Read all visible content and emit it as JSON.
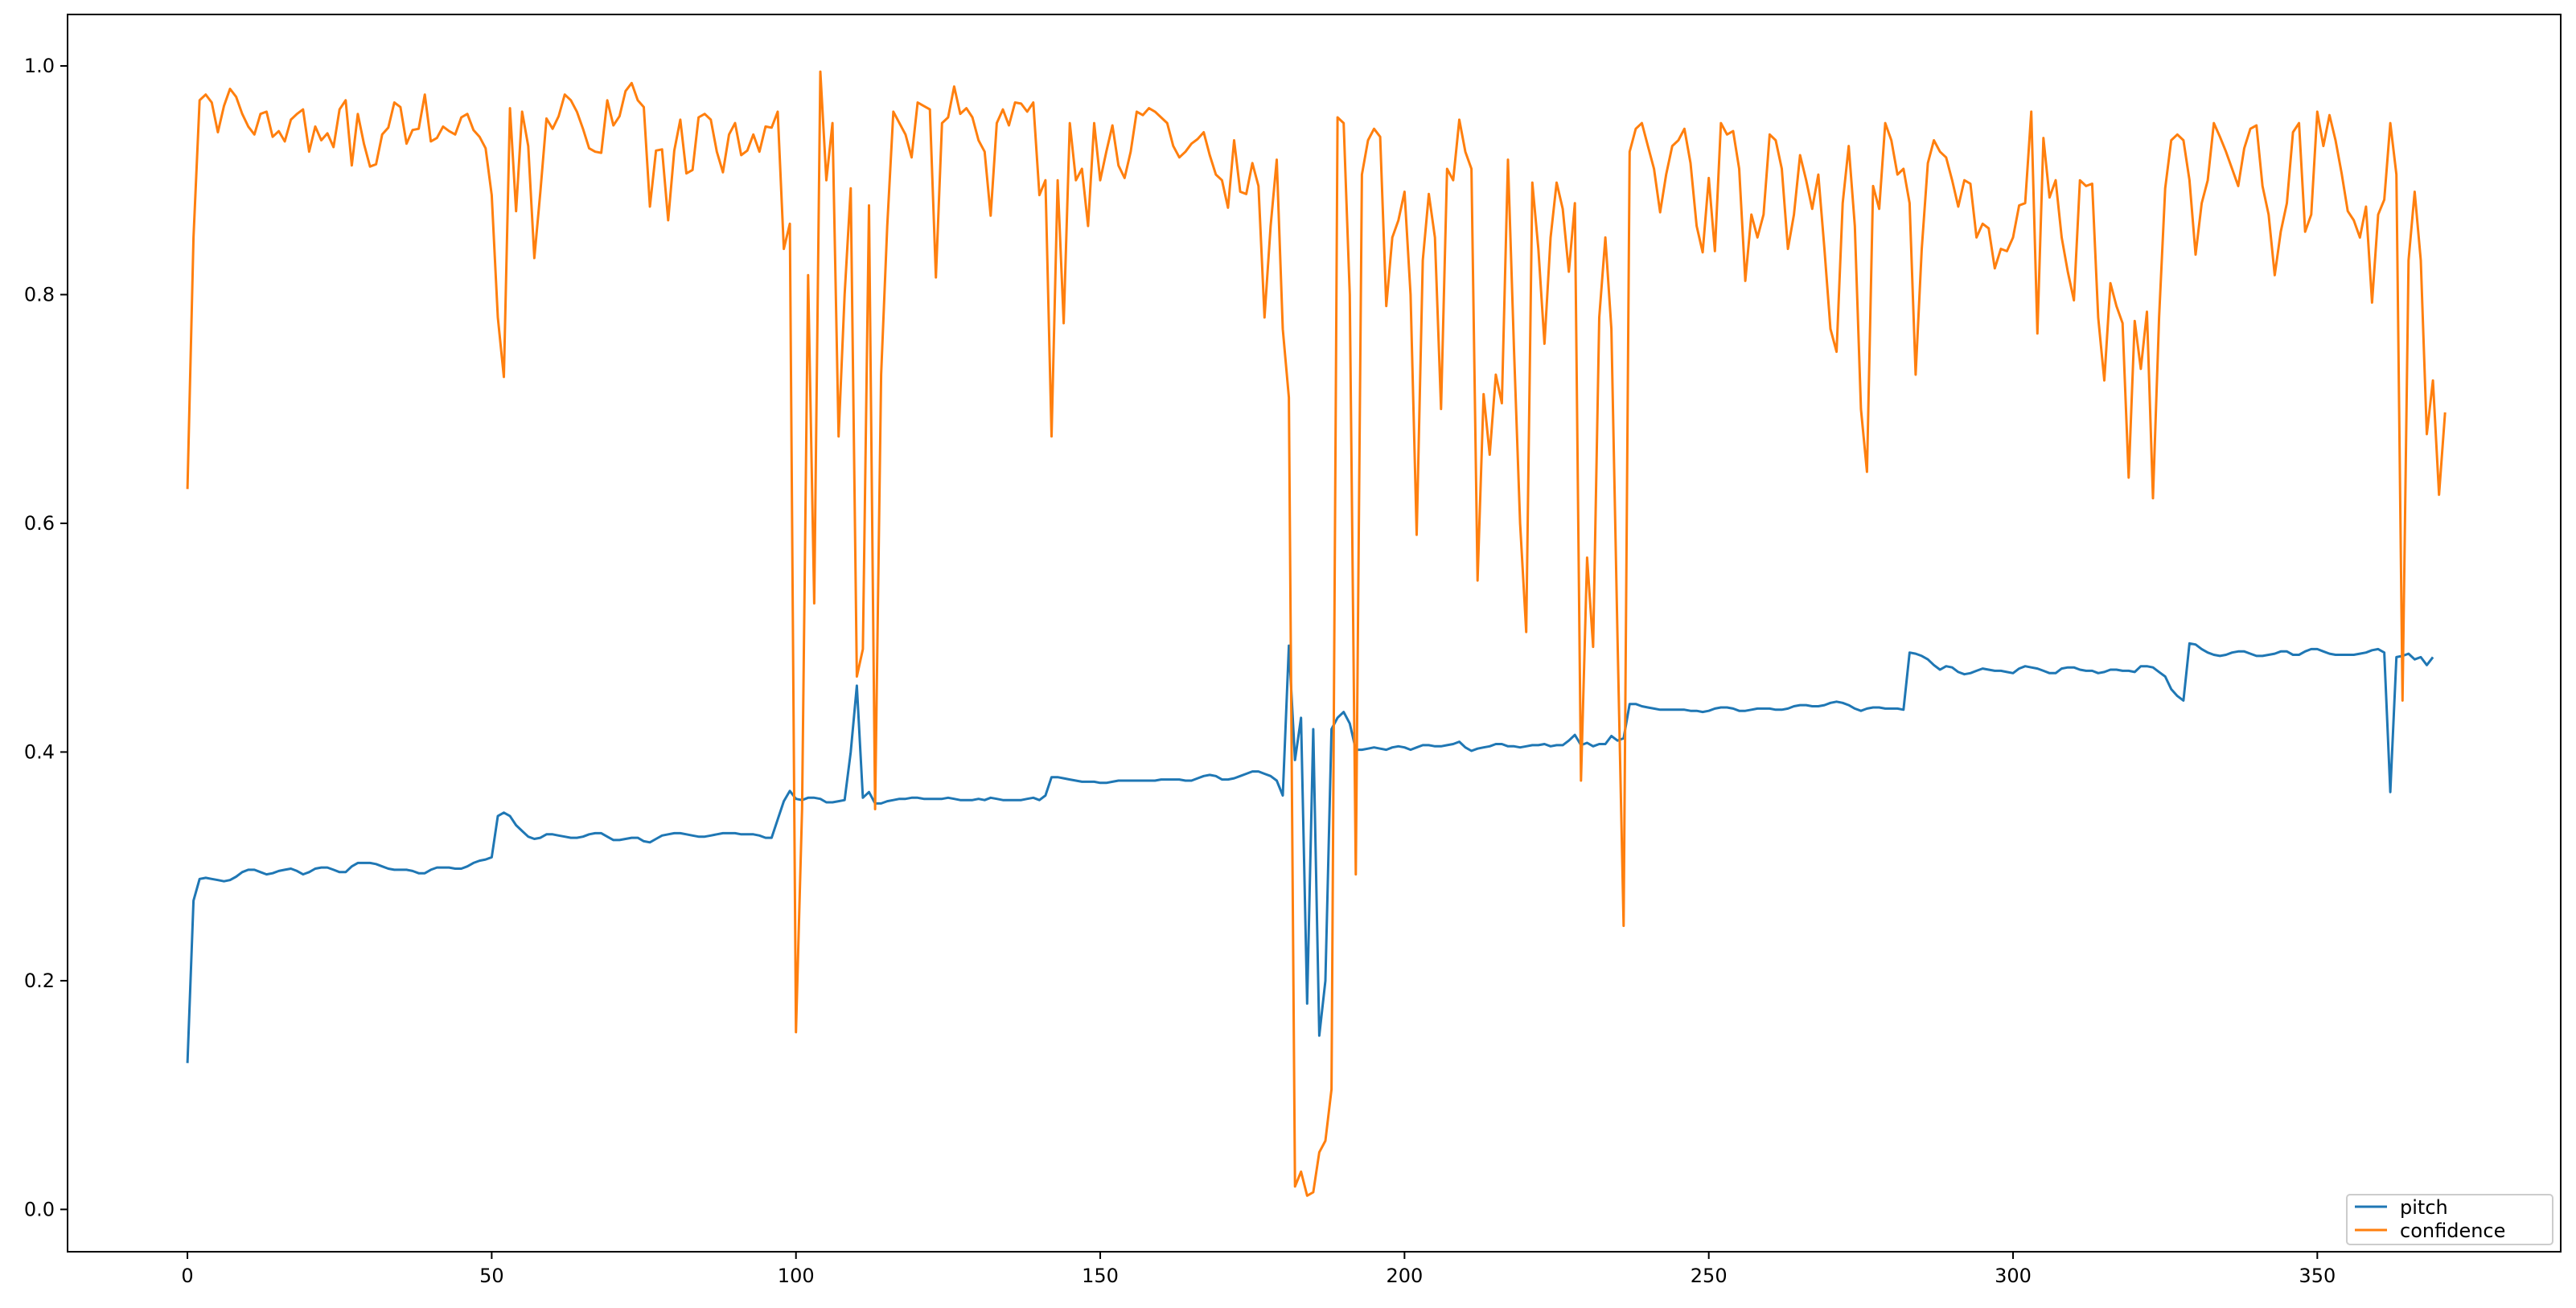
{
  "chart_data": {
    "type": "line",
    "title": "",
    "xlabel": "",
    "ylabel": "",
    "xlim": [
      -19.7,
      390
    ],
    "ylim": [
      -0.037,
      1.045
    ],
    "grid": false,
    "legend_position": "lower-right",
    "x_ticks": [
      "0",
      "50",
      "100",
      "150",
      "200",
      "250",
      "300",
      "350"
    ],
    "y_ticks": [
      "0.0",
      "0.2",
      "0.4",
      "0.6",
      "0.8",
      "1.0"
    ],
    "series": [
      {
        "name": "pitch",
        "color": "#1f77b4",
        "values": [
          0.128,
          0.27,
          0.289,
          0.29,
          0.289,
          0.288,
          0.287,
          0.288,
          0.291,
          0.295,
          0.297,
          0.297,
          0.295,
          0.293,
          0.294,
          0.296,
          0.297,
          0.298,
          0.296,
          0.293,
          0.295,
          0.298,
          0.299,
          0.299,
          0.297,
          0.295,
          0.295,
          0.3,
          0.303,
          0.303,
          0.303,
          0.302,
          0.3,
          0.298,
          0.297,
          0.297,
          0.297,
          0.296,
          0.294,
          0.294,
          0.297,
          0.299,
          0.299,
          0.299,
          0.298,
          0.298,
          0.3,
          0.303,
          0.305,
          0.306,
          0.308,
          0.344,
          0.347,
          0.344,
          0.336,
          0.331,
          0.326,
          0.324,
          0.325,
          0.328,
          0.328,
          0.327,
          0.326,
          0.325,
          0.325,
          0.326,
          0.328,
          0.329,
          0.329,
          0.326,
          0.323,
          0.323,
          0.324,
          0.325,
          0.325,
          0.322,
          0.321,
          0.324,
          0.327,
          0.328,
          0.329,
          0.329,
          0.328,
          0.327,
          0.326,
          0.326,
          0.327,
          0.328,
          0.329,
          0.329,
          0.329,
          0.328,
          0.328,
          0.328,
          0.327,
          0.325,
          0.325,
          0.341,
          0.357,
          0.366,
          0.359,
          0.358,
          0.36,
          0.36,
          0.359,
          0.356,
          0.356,
          0.357,
          0.358,
          0.4,
          0.458,
          0.36,
          0.365,
          0.355,
          0.355,
          0.357,
          0.358,
          0.359,
          0.359,
          0.36,
          0.36,
          0.359,
          0.359,
          0.359,
          0.359,
          0.36,
          0.359,
          0.358,
          0.358,
          0.358,
          0.359,
          0.358,
          0.36,
          0.359,
          0.358,
          0.358,
          0.358,
          0.358,
          0.359,
          0.36,
          0.358,
          0.362,
          0.378,
          0.378,
          0.377,
          0.376,
          0.375,
          0.374,
          0.374,
          0.374,
          0.373,
          0.373,
          0.374,
          0.375,
          0.375,
          0.375,
          0.375,
          0.375,
          0.375,
          0.375,
          0.376,
          0.376,
          0.376,
          0.376,
          0.375,
          0.375,
          0.377,
          0.379,
          0.38,
          0.379,
          0.376,
          0.376,
          0.377,
          0.379,
          0.381,
          0.383,
          0.383,
          0.381,
          0.379,
          0.375,
          0.362,
          0.493,
          0.393,
          0.43,
          0.18,
          0.42,
          0.152,
          0.2,
          0.42,
          0.43,
          0.435,
          0.425,
          0.402,
          0.402,
          0.403,
          0.404,
          0.403,
          0.402,
          0.404,
          0.405,
          0.404,
          0.402,
          0.404,
          0.406,
          0.406,
          0.405,
          0.405,
          0.406,
          0.407,
          0.409,
          0.404,
          0.401,
          0.403,
          0.404,
          0.405,
          0.407,
          0.407,
          0.405,
          0.405,
          0.404,
          0.405,
          0.406,
          0.406,
          0.407,
          0.405,
          0.406,
          0.406,
          0.41,
          0.415,
          0.406,
          0.408,
          0.405,
          0.407,
          0.407,
          0.414,
          0.41,
          0.412,
          0.442,
          0.442,
          0.44,
          0.439,
          0.438,
          0.437,
          0.437,
          0.437,
          0.437,
          0.437,
          0.436,
          0.436,
          0.435,
          0.436,
          0.438,
          0.439,
          0.439,
          0.438,
          0.436,
          0.436,
          0.437,
          0.438,
          0.438,
          0.438,
          0.437,
          0.437,
          0.438,
          0.44,
          0.441,
          0.441,
          0.44,
          0.44,
          0.441,
          0.443,
          0.444,
          0.443,
          0.441,
          0.438,
          0.436,
          0.438,
          0.439,
          0.439,
          0.438,
          0.438,
          0.438,
          0.437,
          0.487,
          0.486,
          0.484,
          0.481,
          0.476,
          0.472,
          0.475,
          0.474,
          0.47,
          0.468,
          0.469,
          0.471,
          0.473,
          0.472,
          0.471,
          0.471,
          0.47,
          0.469,
          0.473,
          0.475,
          0.474,
          0.473,
          0.471,
          0.469,
          0.469,
          0.473,
          0.474,
          0.474,
          0.472,
          0.471,
          0.471,
          0.469,
          0.47,
          0.472,
          0.472,
          0.471,
          0.471,
          0.47,
          0.475,
          0.475,
          0.474,
          0.47,
          0.466,
          0.455,
          0.449,
          0.445,
          0.495,
          0.494,
          0.49,
          0.487,
          0.485,
          0.484,
          0.485,
          0.487,
          0.488,
          0.488,
          0.486,
          0.484,
          0.484,
          0.485,
          0.486,
          0.488,
          0.488,
          0.485,
          0.485,
          0.488,
          0.49,
          0.49,
          0.488,
          0.486,
          0.485,
          0.485,
          0.485,
          0.485,
          0.486,
          0.487,
          0.489,
          0.49,
          0.487,
          0.365,
          0.483,
          0.484,
          0.486,
          0.481,
          0.483,
          0.476,
          0.483
        ]
      },
      {
        "name": "confidence",
        "color": "#ff7f0e",
        "values": [
          0.63,
          0.85,
          0.97,
          0.975,
          0.968,
          0.942,
          0.965,
          0.98,
          0.973,
          0.958,
          0.947,
          0.94,
          0.958,
          0.96,
          0.938,
          0.943,
          0.934,
          0.953,
          0.958,
          0.962,
          0.925,
          0.947,
          0.935,
          0.941,
          0.929,
          0.962,
          0.97,
          0.913,
          0.958,
          0.932,
          0.912,
          0.914,
          0.94,
          0.946,
          0.968,
          0.964,
          0.932,
          0.944,
          0.945,
          0.975,
          0.934,
          0.937,
          0.947,
          0.943,
          0.94,
          0.955,
          0.958,
          0.944,
          0.938,
          0.928,
          0.887,
          0.78,
          0.728,
          0.963,
          0.873,
          0.96,
          0.93,
          0.832,
          0.89,
          0.954,
          0.945,
          0.956,
          0.975,
          0.97,
          0.96,
          0.945,
          0.928,
          0.925,
          0.924,
          0.97,
          0.948,
          0.956,
          0.978,
          0.985,
          0.97,
          0.964,
          0.877,
          0.926,
          0.927,
          0.865,
          0.926,
          0.953,
          0.906,
          0.909,
          0.955,
          0.958,
          0.953,
          0.925,
          0.907,
          0.94,
          0.95,
          0.922,
          0.926,
          0.94,
          0.925,
          0.947,
          0.946,
          0.96,
          0.84,
          0.862,
          0.155,
          0.35,
          0.817,
          0.53,
          0.995,
          0.9,
          0.95,
          0.676,
          0.8,
          0.893,
          0.466,
          0.49,
          0.878,
          0.35,
          0.73,
          0.86,
          0.96,
          0.95,
          0.94,
          0.92,
          0.968,
          0.965,
          0.962,
          0.815,
          0.95,
          0.955,
          0.982,
          0.958,
          0.963,
          0.955,
          0.935,
          0.925,
          0.869,
          0.95,
          0.962,
          0.948,
          0.968,
          0.967,
          0.96,
          0.968,
          0.887,
          0.9,
          0.676,
          0.9,
          0.775,
          0.95,
          0.9,
          0.91,
          0.86,
          0.95,
          0.9,
          0.925,
          0.948,
          0.913,
          0.902,
          0.925,
          0.96,
          0.957,
          0.963,
          0.96,
          0.955,
          0.95,
          0.93,
          0.92,
          0.925,
          0.932,
          0.936,
          0.942,
          0.922,
          0.905,
          0.9,
          0.876,
          0.935,
          0.89,
          0.888,
          0.915,
          0.895,
          0.78,
          0.86,
          0.918,
          0.77,
          0.71,
          0.02,
          0.033,
          0.012,
          0.015,
          0.05,
          0.06,
          0.105,
          0.955,
          0.95,
          0.8,
          0.293,
          0.905,
          0.935,
          0.945,
          0.938,
          0.79,
          0.85,
          0.865,
          0.89,
          0.8,
          0.59,
          0.83,
          0.888,
          0.85,
          0.7,
          0.91,
          0.9,
          0.953,
          0.925,
          0.91,
          0.55,
          0.713,
          0.66,
          0.73,
          0.705,
          0.918,
          0.75,
          0.6,
          0.505,
          0.898,
          0.84,
          0.757,
          0.85,
          0.898,
          0.875,
          0.82,
          0.88,
          0.375,
          0.57,
          0.492,
          0.78,
          0.85,
          0.77,
          0.5,
          0.248,
          0.925,
          0.945,
          0.95,
          0.93,
          0.91,
          0.872,
          0.905,
          0.93,
          0.935,
          0.945,
          0.915,
          0.86,
          0.837,
          0.902,
          0.838,
          0.95,
          0.94,
          0.943,
          0.91,
          0.812,
          0.87,
          0.85,
          0.87,
          0.94,
          0.935,
          0.91,
          0.84,
          0.87,
          0.922,
          0.9,
          0.875,
          0.905,
          0.84,
          0.77,
          0.75,
          0.88,
          0.93,
          0.86,
          0.7,
          0.645,
          0.895,
          0.875,
          0.95,
          0.935,
          0.905,
          0.91,
          0.88,
          0.73,
          0.84,
          0.915,
          0.935,
          0.925,
          0.92,
          0.9,
          0.877,
          0.9,
          0.897,
          0.85,
          0.862,
          0.858,
          0.823,
          0.84,
          0.838,
          0.85,
          0.878,
          0.88,
          0.96,
          0.766,
          0.937,
          0.885,
          0.9,
          0.85,
          0.82,
          0.795,
          0.9,
          0.895,
          0.897,
          0.78,
          0.725,
          0.81,
          0.79,
          0.775,
          0.64,
          0.777,
          0.735,
          0.785,
          0.622,
          0.78,
          0.893,
          0.935,
          0.94,
          0.935,
          0.9,
          0.835,
          0.88,
          0.9,
          0.95,
          0.938,
          0.925,
          0.91,
          0.895,
          0.928,
          0.945,
          0.948,
          0.895,
          0.87,
          0.817,
          0.855,
          0.88,
          0.942,
          0.95,
          0.855,
          0.87,
          0.96,
          0.93,
          0.957,
          0.935,
          0.906,
          0.873,
          0.865,
          0.85,
          0.877,
          0.793,
          0.87,
          0.883,
          0.95,
          0.905,
          0.445,
          0.83,
          0.89,
          0.83,
          0.678,
          0.725,
          0.625,
          0.697
        ]
      }
    ]
  }
}
